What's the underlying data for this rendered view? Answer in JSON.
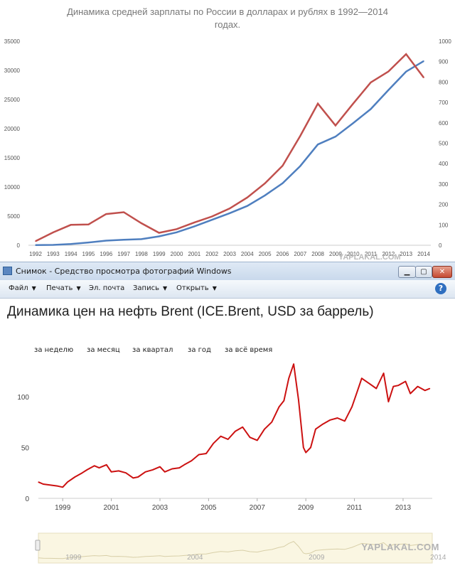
{
  "top_chart": {
    "title_line1": "Динамика средней зарплаты по России в долларах и рублях в 1992—2014",
    "title_line2": "годах.",
    "left_ticks": [
      "0",
      "5000",
      "10000",
      "15000",
      "20000",
      "25000",
      "30000",
      "35000"
    ],
    "right_ticks": [
      "0",
      "100",
      "200",
      "300",
      "400",
      "500",
      "600",
      "700",
      "800",
      "900",
      "1000"
    ],
    "x_ticks": [
      "1992",
      "1993",
      "1994",
      "1995",
      "1996",
      "1997",
      "1998",
      "1999",
      "2000",
      "2001",
      "2002",
      "2003",
      "2004",
      "2005",
      "2006",
      "2007",
      "2008",
      "2009",
      "2010",
      "2011",
      "2012",
      "2013",
      "2014"
    ],
    "colors": {
      "rubles": "#4f7fbf",
      "dollars": "#c0504d"
    }
  },
  "chart_data": [
    {
      "type": "line",
      "title": "Динамика средней зарплаты по России в долларах и рублях в 1992—2014 годах.",
      "x": [
        1992,
        1993,
        1994,
        1995,
        1996,
        1997,
        1998,
        1999,
        2000,
        2001,
        2002,
        2003,
        2004,
        2005,
        2006,
        2007,
        2008,
        2009,
        2010,
        2011,
        2012,
        2013,
        2014
      ],
      "ylim_left": [
        0,
        35000
      ],
      "ylim_right": [
        0,
        1000
      ],
      "grid": false,
      "series": [
        {
          "axis": "left",
          "values": [
            20,
            60,
            220,
            470,
            790,
            950,
            1050,
            1520,
            2220,
            3240,
            4360,
            5500,
            6740,
            8550,
            10630,
            13590,
            17290,
            18640,
            20950,
            23370,
            26630,
            29790,
            31600
          ]
        },
        {
          "axis": "right",
          "values": [
            20,
            63,
            100,
            102,
            153,
            162,
            108,
            61,
            79,
            112,
            141,
            180,
            234,
            303,
            390,
            536,
            694,
            587,
            694,
            798,
            852,
            937,
            822
          ]
        }
      ]
    },
    {
      "type": "line",
      "title": "Динамика цен на нефть Brent (ICE.Brent, USD за баррель)",
      "x": [
        1998.0,
        1998.2,
        1998.5,
        1998.8,
        1999.0,
        1999.2,
        1999.5,
        1999.8,
        2000.0,
        2000.3,
        2000.5,
        2000.8,
        2001.0,
        2001.3,
        2001.6,
        2001.9,
        2002.1,
        2002.4,
        2002.7,
        2003.0,
        2003.2,
        2003.5,
        2003.8,
        2004.0,
        2004.3,
        2004.6,
        2004.9,
        2005.2,
        2005.5,
        2005.8,
        2006.1,
        2006.4,
        2006.7,
        2007.0,
        2007.3,
        2007.6,
        2007.9,
        2008.1,
        2008.3,
        2008.5,
        2008.7,
        2008.9,
        2009.0,
        2009.2,
        2009.4,
        2009.7,
        2010.0,
        2010.3,
        2010.6,
        2010.9,
        2011.1,
        2011.3,
        2011.6,
        2011.9,
        2012.2,
        2012.4,
        2012.6,
        2012.8,
        2013.1,
        2013.3,
        2013.6,
        2013.9,
        2014.1
      ],
      "values": [
        16,
        14,
        13,
        12,
        11,
        16,
        21,
        25,
        28,
        32,
        30,
        33,
        26,
        27,
        25,
        20,
        21,
        26,
        28,
        31,
        26,
        29,
        30,
        33,
        37,
        43,
        44,
        54,
        61,
        58,
        66,
        70,
        60,
        57,
        68,
        75,
        90,
        96,
        118,
        132,
        97,
        50,
        45,
        50,
        68,
        73,
        77,
        79,
        76,
        90,
        104,
        118,
        113,
        108,
        123,
        95,
        110,
        111,
        115,
        103,
        110,
        106,
        108
      ],
      "xlim": [
        1998,
        2014.2
      ],
      "ylim": [
        0,
        130
      ],
      "y_ticks": [
        "0",
        "50",
        "100"
      ],
      "x_ticks": [
        "1999",
        "2001",
        "2003",
        "2005",
        "2007",
        "2009",
        "2011",
        "2013"
      ],
      "color": "#cc1111"
    }
  ],
  "window": {
    "title": "Снимок - Средство просмотра фотографий Windows",
    "controls": {
      "minimize": "▁",
      "maximize": "▢",
      "close": "✕"
    },
    "menu": {
      "file": "Файл",
      "print": "Печать",
      "email": "Эл. почта",
      "burn": "Запись",
      "open": "Открыть"
    },
    "help": "?"
  },
  "content": {
    "heading": "Динамика цен на нефть Brent (ICE.Brent, USD за баррель)",
    "periods": [
      "за неделю",
      "за месяц",
      "за квартал",
      "за год",
      "за всё время"
    ],
    "navigator_years": [
      "1999",
      "2004",
      "2009",
      "2014"
    ]
  },
  "watermark": "YAPLAKAL.COM"
}
